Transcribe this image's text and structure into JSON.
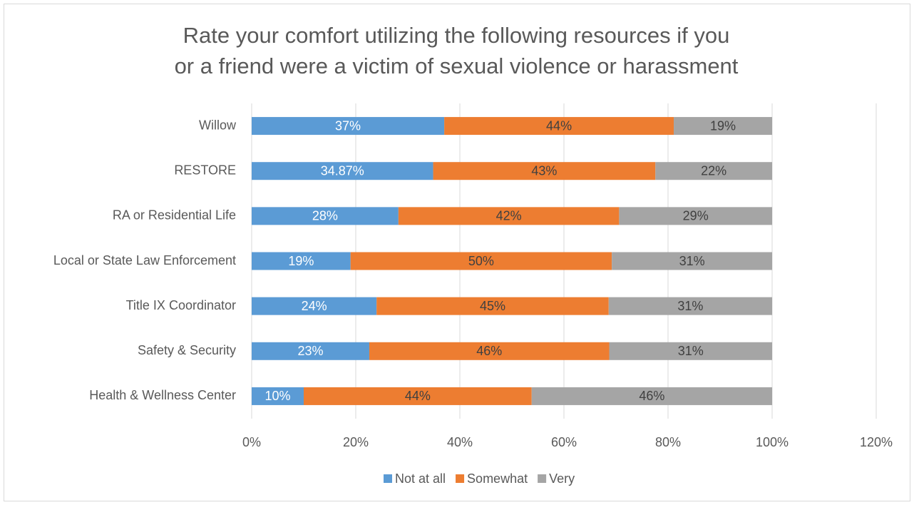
{
  "chart_data": {
    "type": "stacked-bar-horizontal",
    "title": "Rate your comfort utilizing the following resources if you or a friend were a victim of sexual violence or harassment",
    "categories": [
      "Willow",
      "RESTORE",
      "RA or Residential Life",
      "Local or State Law Enforcement",
      "Title IX Coordinator",
      "Safety & Security",
      "Health & Wellness Center"
    ],
    "series": [
      {
        "name": "Not at all",
        "color": "#5b9bd5",
        "label_color": "#ffffff",
        "values": [
          37,
          34.87,
          28.2,
          19,
          24,
          22.6,
          10
        ],
        "value_labels": [
          "37%",
          "34.87%",
          "28%",
          "19%",
          "24%",
          "23%",
          "10%"
        ]
      },
      {
        "name": "Somewhat",
        "color": "#ed7d31",
        "label_color": "#404040",
        "values": [
          44.1,
          42.7,
          42.4,
          50.2,
          44.6,
          46.1,
          43.8
        ],
        "value_labels": [
          "44%",
          "43%",
          "42%",
          "50%",
          "45%",
          "46%",
          "44%"
        ]
      },
      {
        "name": "Very",
        "color": "#a5a5a5",
        "label_color": "#404040",
        "values": [
          18.9,
          22.43,
          29.4,
          30.8,
          31.4,
          31.3,
          46.2
        ],
        "value_labels": [
          "19%",
          "22%",
          "29%",
          "31%",
          "31%",
          "31%",
          "46%"
        ]
      }
    ],
    "xlim": [
      0,
      120
    ],
    "xticks": [
      {
        "value": 0,
        "label": "0%"
      },
      {
        "value": 20,
        "label": "20%"
      },
      {
        "value": 40,
        "label": "40%"
      },
      {
        "value": 60,
        "label": "60%"
      },
      {
        "value": 80,
        "label": "80%"
      },
      {
        "value": 100,
        "label": "100%"
      },
      {
        "value": 120,
        "label": "120%"
      }
    ],
    "grid": true,
    "legend": "bottom"
  }
}
